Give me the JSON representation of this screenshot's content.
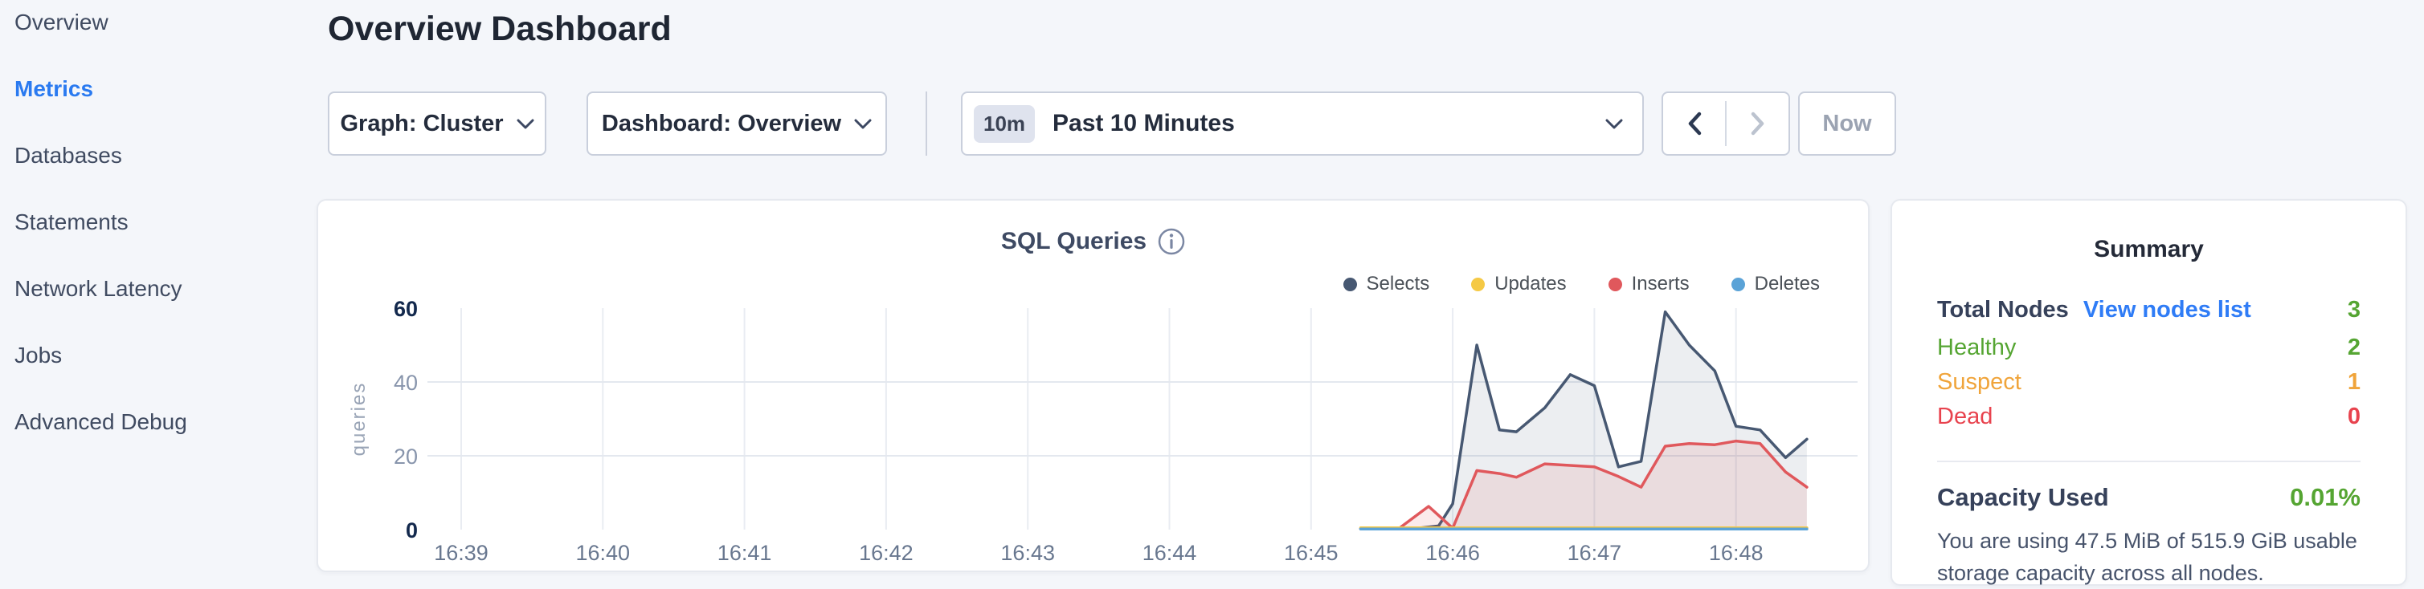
{
  "colors": {
    "accent_blue": "#2a7af0",
    "link_blue": "#2f7cf6",
    "healthy_green": "#55a532",
    "suspect_orange": "#f0a43a",
    "dead_red": "#e8434e",
    "page_background": "#f4f6fa"
  },
  "sidebar": {
    "items": [
      {
        "label": "Overview",
        "active": false
      },
      {
        "label": "Metrics",
        "active": true
      },
      {
        "label": "Databases",
        "active": false
      },
      {
        "label": "Statements",
        "active": false
      },
      {
        "label": "Network Latency",
        "active": false
      },
      {
        "label": "Jobs",
        "active": false
      },
      {
        "label": "Advanced Debug",
        "active": false
      }
    ]
  },
  "header": {
    "title": "Overview Dashboard"
  },
  "controls": {
    "graph_dropdown": {
      "label": "Graph: Cluster",
      "icon": "chevron-down-icon"
    },
    "dashboard_dropdown": {
      "label": "Dashboard: Overview",
      "icon": "chevron-down-icon"
    },
    "time_picker": {
      "badge": "10m",
      "label": "Past 10 Minutes",
      "icon": "chevron-down-icon"
    },
    "prev_button": {
      "icon": "chevron-left-icon",
      "enabled": true
    },
    "next_button": {
      "icon": "chevron-right-icon",
      "enabled": false
    },
    "now_button": {
      "label": "Now",
      "enabled": false
    }
  },
  "chart_data": {
    "type": "area",
    "title": "SQL Queries",
    "info_icon": "info-circle-icon",
    "ylabel": "queries",
    "xlabel": "",
    "x_ticks": [
      "16:39",
      "16:40",
      "16:41",
      "16:42",
      "16:43",
      "16:44",
      "16:45",
      "16:46",
      "16:47",
      "16:48"
    ],
    "y_ticks": [
      0,
      20,
      40,
      60
    ],
    "ylim": [
      0,
      60
    ],
    "x_domain_minutes_after_1639": [
      0,
      9.85
    ],
    "grid": true,
    "legend_position": "top-right",
    "series": [
      {
        "name": "Selects",
        "color": "#475872",
        "fill": "rgba(71,88,114,0.10)",
        "points": [
          [
            6.35,
            0.3
          ],
          [
            6.75,
            0.4
          ],
          [
            6.9,
            1.0
          ],
          [
            7.0,
            7
          ],
          [
            7.17,
            50
          ],
          [
            7.33,
            27
          ],
          [
            7.45,
            26.5
          ],
          [
            7.65,
            33
          ],
          [
            7.83,
            42
          ],
          [
            8.0,
            39
          ],
          [
            8.17,
            17
          ],
          [
            8.33,
            18.5
          ],
          [
            8.5,
            59
          ],
          [
            8.67,
            50
          ],
          [
            8.85,
            43
          ],
          [
            9.0,
            28
          ],
          [
            9.17,
            27
          ],
          [
            9.35,
            19.5
          ],
          [
            9.5,
            24.5
          ]
        ]
      },
      {
        "name": "Updates",
        "color": "#f5c945",
        "fill": "rgba(245,201,69,0.15)",
        "points": [
          [
            6.35,
            0.5
          ],
          [
            9.5,
            0.5
          ]
        ]
      },
      {
        "name": "Inserts",
        "color": "#e0585c",
        "fill": "rgba(224,88,92,0.12)",
        "points": [
          [
            6.35,
            0.2
          ],
          [
            6.62,
            0.3
          ],
          [
            6.83,
            6.3
          ],
          [
            7.0,
            0.4
          ],
          [
            7.17,
            16
          ],
          [
            7.33,
            15.2
          ],
          [
            7.45,
            14.2
          ],
          [
            7.65,
            17.8
          ],
          [
            7.83,
            17.4
          ],
          [
            8.0,
            17
          ],
          [
            8.17,
            14.4
          ],
          [
            8.33,
            11.5
          ],
          [
            8.5,
            22.6
          ],
          [
            8.67,
            23.3
          ],
          [
            8.85,
            23
          ],
          [
            9.0,
            24
          ],
          [
            9.17,
            23.3
          ],
          [
            9.35,
            15.6
          ],
          [
            9.5,
            11.5
          ]
        ]
      },
      {
        "name": "Deletes",
        "color": "#5ba3d7",
        "fill": "rgba(91,163,215,0.12)",
        "points": [
          [
            6.35,
            0.15
          ],
          [
            9.5,
            0.15
          ]
        ]
      }
    ],
    "draw_order": [
      "Selects",
      "Inserts",
      "Updates",
      "Deletes"
    ]
  },
  "summary": {
    "title": "Summary",
    "total_nodes": {
      "label": "Total Nodes",
      "link": "View nodes list",
      "value": "3"
    },
    "rows": [
      {
        "label": "Healthy",
        "value": "2",
        "color": "#55a532"
      },
      {
        "label": "Suspect",
        "value": "1",
        "color": "#f0a43a"
      },
      {
        "label": "Dead",
        "value": "0",
        "color": "#e8434e"
      }
    ],
    "capacity": {
      "label": "Capacity Used",
      "value": "0.01%",
      "description": "You are using 47.5 MiB of 515.9 GiB usable storage capacity across all nodes."
    }
  }
}
